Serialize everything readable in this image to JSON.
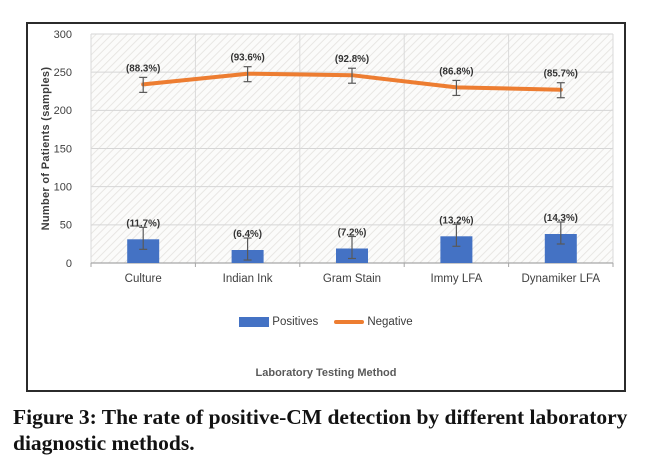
{
  "figure": {
    "caption_line1": "Figure 3: The rate of positive-CM detection by different laboratory",
    "caption_line2": "diagnostic methods."
  },
  "chart_data": {
    "type": "bar+line",
    "categories": [
      "Culture",
      "Indian Ink",
      "Gram Stain",
      "Immy LFA",
      "Dynamiker LFA"
    ],
    "series": [
      {
        "name": "Positives",
        "type": "bar",
        "color": "#4472C4",
        "values": [
          31,
          17,
          19,
          35,
          38
        ],
        "point_labels": [
          "(11.7%)",
          "(6.4%)",
          "(7.2%)",
          "(13.2%)",
          "(14.3%)"
        ]
      },
      {
        "name": "Negative",
        "type": "line",
        "color": "#ED7D31",
        "values": [
          234,
          248,
          246,
          230,
          227
        ],
        "point_labels": [
          "(88.3%)",
          "(93.6%)",
          "(92.8%)",
          "(86.8%)",
          "(85.7%)"
        ]
      }
    ],
    "xlabel": "Laboratory Testing Method",
    "ylabel": "Number of Patients (samples)",
    "ylim": [
      0,
      300
    ],
    "yticks": [
      0,
      50,
      100,
      150,
      200,
      250,
      300
    ],
    "grid": true,
    "error_bars": true,
    "legend_position": "bottom",
    "plot_background": "diagonal-hatch"
  },
  "colors": {
    "bar": "#4472C4",
    "line": "#ED7D31",
    "gridline": "#d6d6d6",
    "axis": "#a6a6a6",
    "error_bar": "#595959",
    "text": "#404040"
  }
}
